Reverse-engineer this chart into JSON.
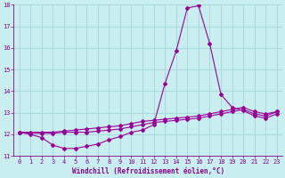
{
  "xlabel": "Windchill (Refroidissement éolien,°C)",
  "bg_color": "#c8eef0",
  "grid_color": "#a8d8dc",
  "line_color": "#990099",
  "xlim": [
    -0.5,
    23.5
  ],
  "ylim": [
    11,
    18
  ],
  "xticks": [
    0,
    1,
    2,
    3,
    4,
    5,
    6,
    7,
    8,
    9,
    10,
    11,
    12,
    13,
    14,
    15,
    16,
    17,
    18,
    19,
    20,
    21,
    22,
    23
  ],
  "yticks": [
    11,
    12,
    13,
    14,
    15,
    16,
    17,
    18
  ],
  "line1_x": [
    0,
    1,
    2,
    3,
    4,
    5,
    6,
    7,
    8,
    9,
    10,
    11,
    12,
    13,
    14,
    15,
    16,
    17,
    18,
    19,
    20,
    21,
    22,
    23
  ],
  "line1_y": [
    12.1,
    12.0,
    11.85,
    11.5,
    11.35,
    11.35,
    11.45,
    11.55,
    11.75,
    11.9,
    12.1,
    12.2,
    12.45,
    14.35,
    15.85,
    17.85,
    17.95,
    16.2,
    13.85,
    13.25,
    13.1,
    12.85,
    12.75,
    12.95
  ],
  "line2_x": [
    0,
    1,
    2,
    3,
    4,
    5,
    6,
    7,
    8,
    9,
    10,
    11,
    12,
    13,
    14,
    15,
    16,
    17,
    18,
    19,
    20,
    21,
    22,
    23
  ],
  "line2_y": [
    12.1,
    12.05,
    12.05,
    12.05,
    12.1,
    12.1,
    12.1,
    12.15,
    12.2,
    12.25,
    12.35,
    12.45,
    12.55,
    12.6,
    12.65,
    12.7,
    12.75,
    12.85,
    12.95,
    13.05,
    13.15,
    12.95,
    12.85,
    13.05
  ],
  "line3_x": [
    0,
    1,
    2,
    3,
    4,
    5,
    6,
    7,
    8,
    9,
    10,
    11,
    12,
    13,
    14,
    15,
    16,
    17,
    18,
    19,
    20,
    21,
    22,
    23
  ],
  "line3_y": [
    12.1,
    12.1,
    12.1,
    12.1,
    12.15,
    12.2,
    12.25,
    12.3,
    12.35,
    12.4,
    12.5,
    12.6,
    12.65,
    12.7,
    12.75,
    12.8,
    12.85,
    12.95,
    13.05,
    13.15,
    13.25,
    13.05,
    12.95,
    13.05
  ],
  "marker": "D",
  "markersize": 2,
  "linewidth": 0.8,
  "tick_labelsize": 5,
  "xlabel_fontsize": 5.5,
  "label_color": "#880088",
  "spine_color": "#880088"
}
